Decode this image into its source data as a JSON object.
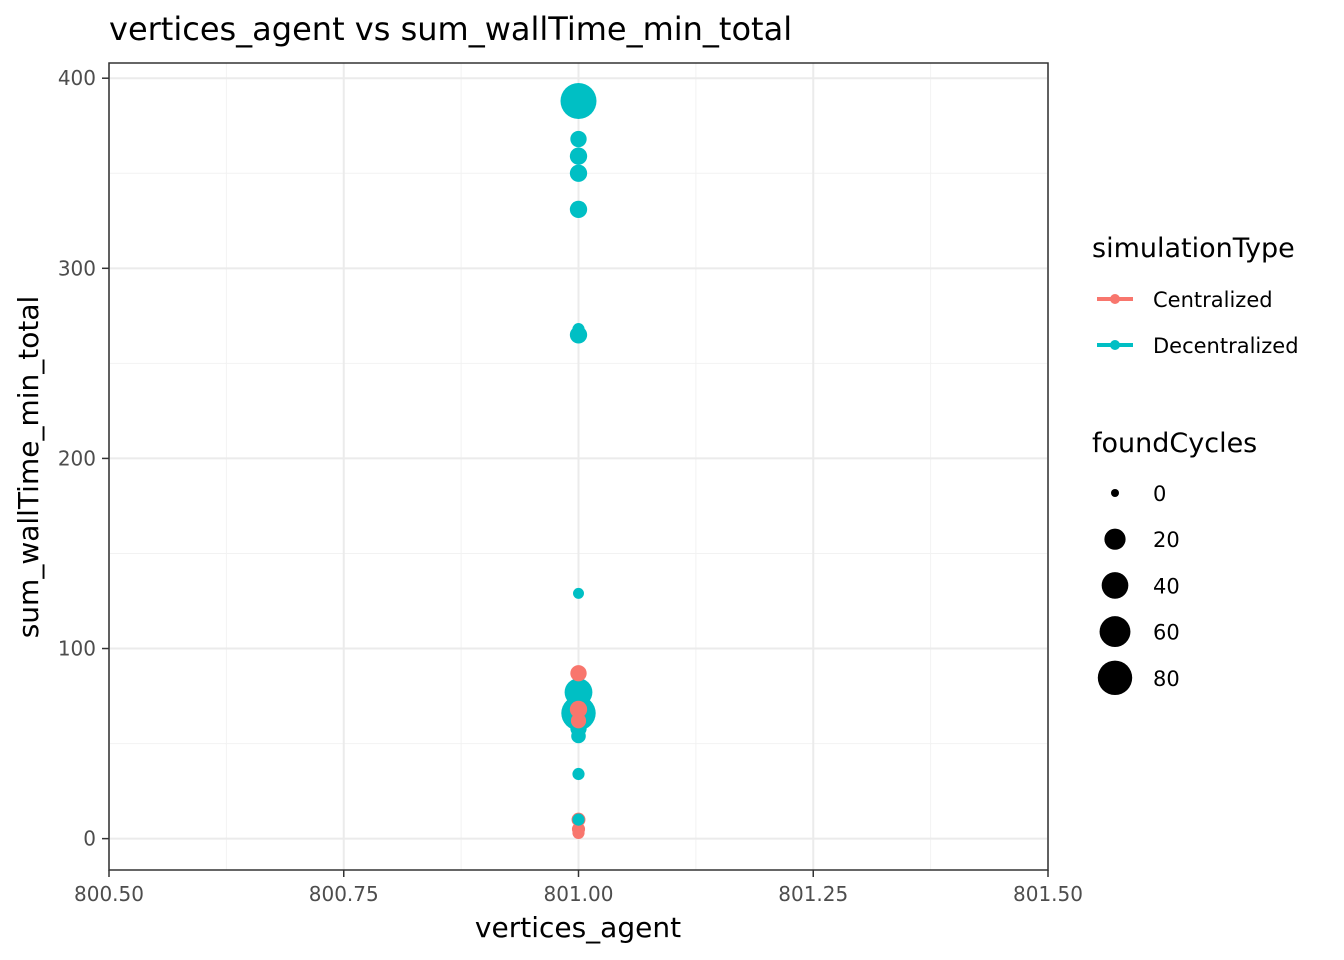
{
  "chart_data": {
    "type": "scatter",
    "title": "vertices_agent  vs  sum_wallTime_min_total",
    "xlabel": "vertices_agent",
    "ylabel": "sum_wallTime_min_total",
    "xlim": [
      800.5,
      801.5
    ],
    "ylim": [
      -16.5,
      408
    ],
    "x_ticks": [
      800.5,
      800.75,
      801.0,
      801.25,
      801.5
    ],
    "x_tick_labels": [
      "800.50",
      "800.75",
      "801.00",
      "801.25",
      "801.50"
    ],
    "y_ticks": [
      0,
      100,
      200,
      300,
      400
    ],
    "y_tick_labels": [
      "0",
      "100",
      "200",
      "300",
      "400"
    ],
    "grid": true,
    "legend_position": "right",
    "color_legend": {
      "title": "simulationType",
      "entries": [
        {
          "label": "Centralized",
          "color": "#F8766D"
        },
        {
          "label": "Decentralized",
          "color": "#00BFC4"
        }
      ]
    },
    "size_legend": {
      "title": "foundCycles",
      "entries": [
        {
          "label": "0",
          "value": 0
        },
        {
          "label": "20",
          "value": 20
        },
        {
          "label": "40",
          "value": 40
        },
        {
          "label": "60",
          "value": 60
        },
        {
          "label": "80",
          "value": 80
        }
      ]
    },
    "series": [
      {
        "name": "Centralized",
        "color": "#F8766D",
        "points": [
          {
            "x": 801.0,
            "y": 87,
            "size": 8
          },
          {
            "x": 801.0,
            "y": 68,
            "size": 10
          },
          {
            "x": 801.0,
            "y": 62,
            "size": 6
          },
          {
            "x": 801.0,
            "y": 10,
            "size": 4
          },
          {
            "x": 801.0,
            "y": 5,
            "size": 3
          },
          {
            "x": 801.0,
            "y": 3,
            "size": 2
          }
        ]
      },
      {
        "name": "Decentralized",
        "color": "#00BFC4",
        "points": [
          {
            "x": 801.0,
            "y": 388,
            "size": 90
          },
          {
            "x": 801.0,
            "y": 368,
            "size": 8
          },
          {
            "x": 801.0,
            "y": 359,
            "size": 10
          },
          {
            "x": 801.0,
            "y": 350,
            "size": 10
          },
          {
            "x": 801.0,
            "y": 331,
            "size": 10
          },
          {
            "x": 801.0,
            "y": 268,
            "size": 2
          },
          {
            "x": 801.0,
            "y": 265,
            "size": 10
          },
          {
            "x": 801.0,
            "y": 129,
            "size": 1
          },
          {
            "x": 801.0,
            "y": 77,
            "size": 45
          },
          {
            "x": 801.0,
            "y": 66,
            "size": 80
          },
          {
            "x": 801.0,
            "y": 58,
            "size": 8
          },
          {
            "x": 801.0,
            "y": 54,
            "size": 5
          },
          {
            "x": 801.0,
            "y": 34,
            "size": 2
          },
          {
            "x": 801.0,
            "y": 10,
            "size": 2
          }
        ]
      }
    ]
  }
}
